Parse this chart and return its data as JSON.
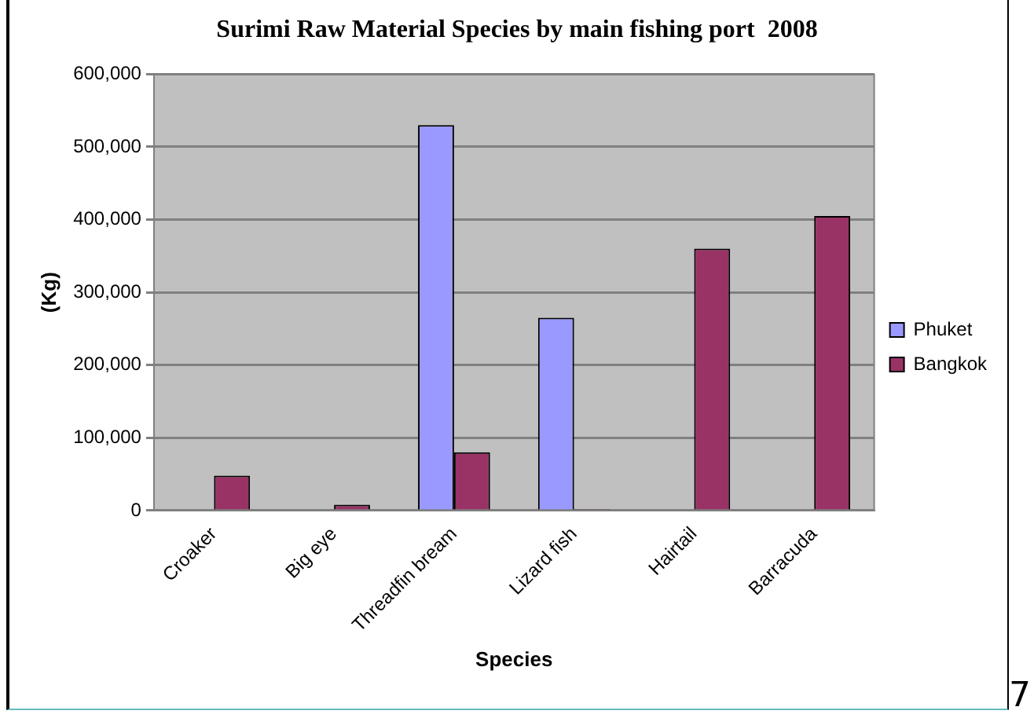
{
  "chart_data": {
    "type": "bar",
    "title": "Surimi Raw Material Species by main fishing port  2008",
    "xlabel": "Species",
    "ylabel": "(Kg)",
    "categories": [
      "Croaker",
      "Big eye",
      "Threadfin bream",
      "Lizard fish",
      "Hairtail",
      "Barracuda"
    ],
    "series": [
      {
        "name": "Phuket",
        "color": "#9999ff",
        "values": [
          0,
          0,
          530000,
          265000,
          0,
          0
        ]
      },
      {
        "name": "Bangkok",
        "color": "#993366",
        "values": [
          48000,
          8000,
          80000,
          2000,
          360000,
          405000
        ]
      }
    ],
    "ylim": [
      0,
      600000
    ],
    "yticks": [
      {
        "value": 0,
        "label": "0"
      },
      {
        "value": 100000,
        "label": "100,000"
      },
      {
        "value": 200000,
        "label": "200,000"
      },
      {
        "value": 300000,
        "label": "300,000"
      },
      {
        "value": 400000,
        "label": "400,000"
      },
      {
        "value": 500000,
        "label": "500,000"
      },
      {
        "value": 600000,
        "label": "600,000"
      }
    ],
    "grid": "y",
    "legend": "right",
    "annotations": [
      "7"
    ]
  }
}
